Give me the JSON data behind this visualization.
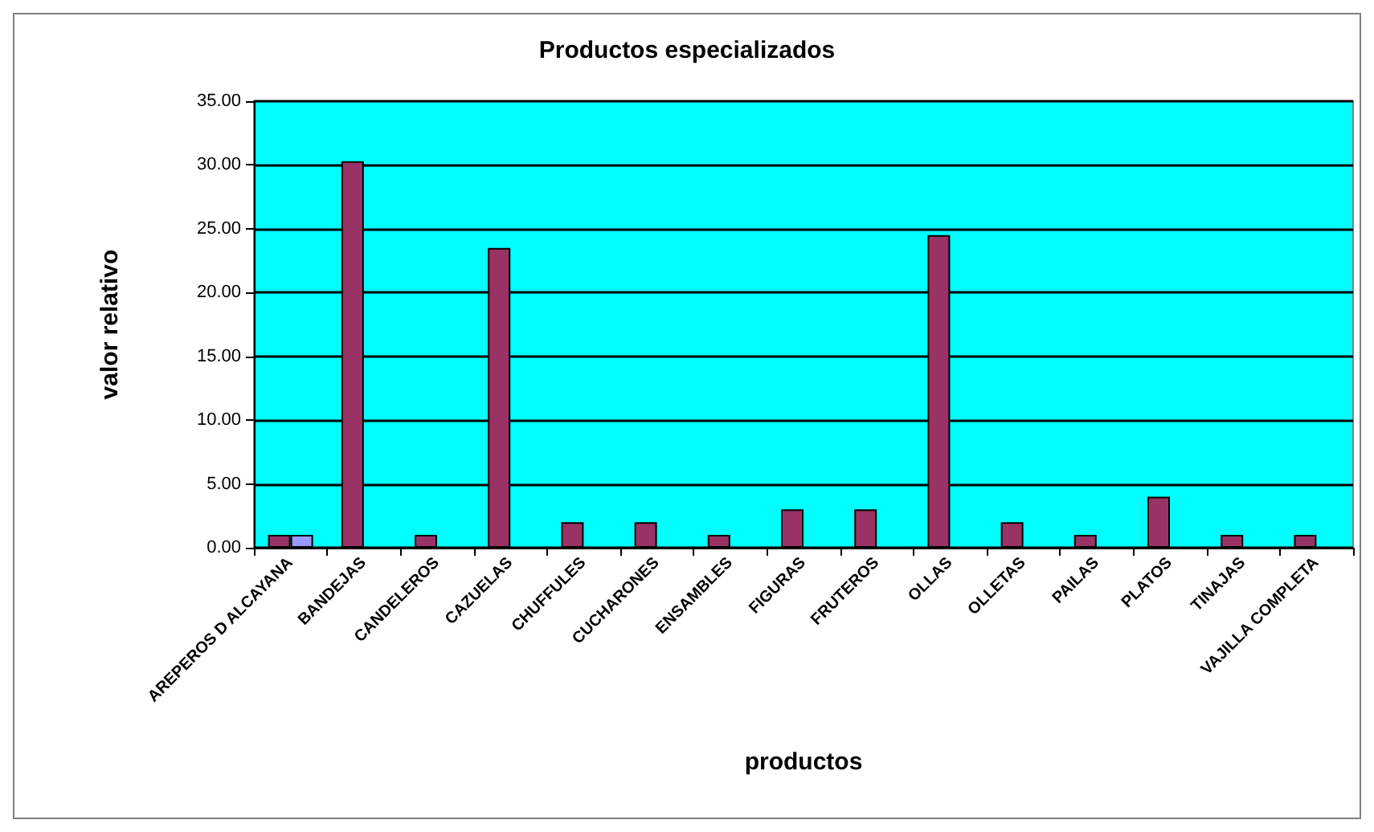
{
  "chart_data": {
    "type": "bar",
    "title": "Productos especializados",
    "xlabel": "productos",
    "ylabel": "valor relativo",
    "categories": [
      "AREPEROS D ALCAYANA",
      "BANDEJAS",
      "CANDELEROS",
      "CAZUELAS",
      "CHUFFULES",
      "CUCHARONES",
      "ENSAMBLES",
      "FIGURAS",
      "FRUTEROS",
      "OLLAS",
      "OLLETAS",
      "PAILAS",
      "PLATOS",
      "TINAJAS",
      "VAJILLA COMPLETA"
    ],
    "series": [
      {
        "color": "#993366",
        "values": [
          1,
          30.3,
          1,
          23.5,
          2,
          2,
          1,
          3,
          3,
          24.5,
          2,
          1,
          4,
          1,
          1
        ]
      },
      {
        "color": "#9999ff",
        "values": [
          1,
          null,
          null,
          null,
          null,
          null,
          null,
          null,
          null,
          null,
          null,
          null,
          null,
          null,
          null
        ]
      }
    ],
    "ylim": [
      0,
      35
    ],
    "yticks": [
      {
        "value": 0,
        "label": "0.00"
      },
      {
        "value": 5,
        "label": "5.00"
      },
      {
        "value": 10,
        "label": "10.00"
      },
      {
        "value": 15,
        "label": "15.00"
      },
      {
        "value": 20,
        "label": "20.00"
      },
      {
        "value": 25,
        "label": "25.00"
      },
      {
        "value": 30,
        "label": "30.00"
      },
      {
        "value": 35,
        "label": "35.00"
      }
    ],
    "grid": "y"
  }
}
